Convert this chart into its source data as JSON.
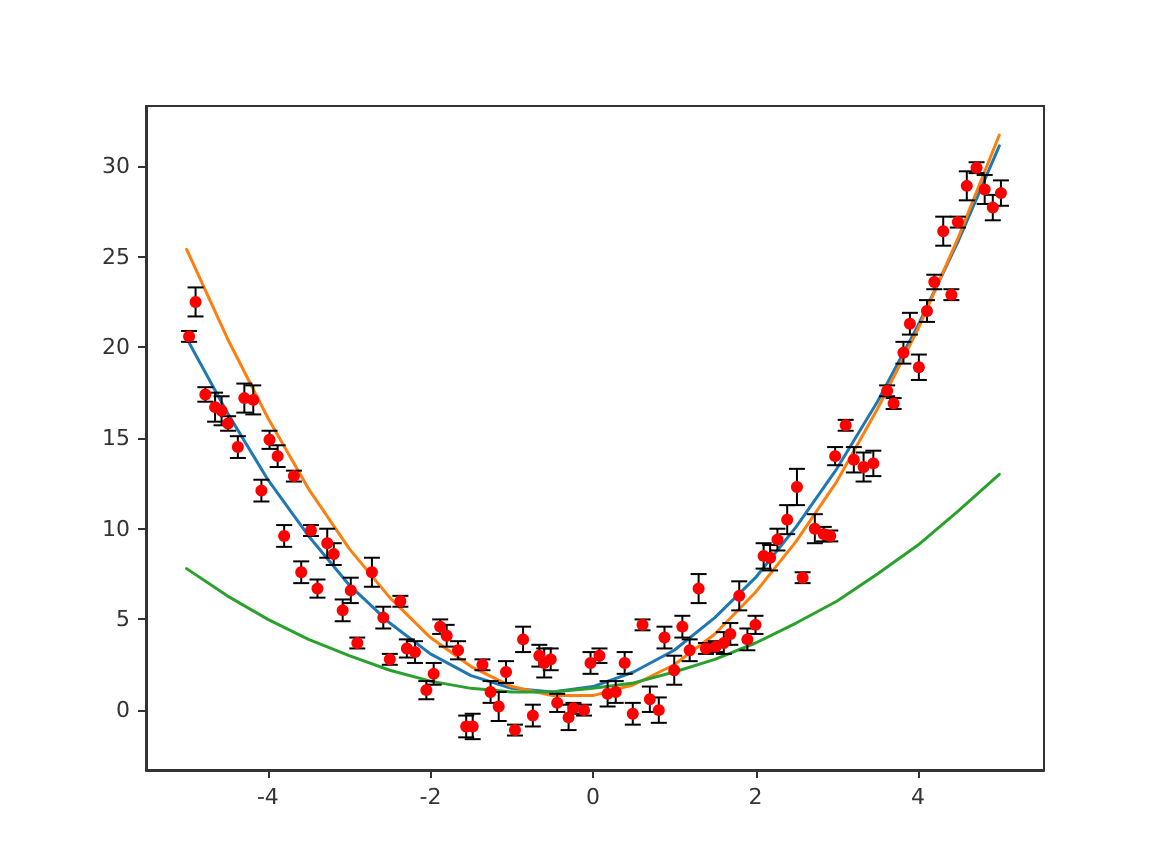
{
  "chart_data": {
    "type": "scatter",
    "xlim": [
      -5.5,
      5.55
    ],
    "ylim": [
      -3.3,
      33.3
    ],
    "xticks": [
      -4,
      -2,
      0,
      2,
      4
    ],
    "yticks": [
      0,
      5,
      10,
      15,
      20,
      25,
      30
    ],
    "grid": false,
    "series": [
      {
        "type": "line",
        "color": "#1f77b4",
        "marker": "none",
        "x": [
          -5,
          -4.5,
          -4,
          -3.5,
          -3,
          -2.5,
          -2,
          -1.5,
          -1,
          -0.5,
          0,
          0.5,
          1,
          1.5,
          2,
          2.5,
          3,
          3.5,
          4,
          4.5,
          5
        ],
        "values": [
          20.5,
          16.4,
          12.7,
          9.6,
          6.9,
          4.8,
          3.1,
          1.9,
          1.2,
          1.0,
          1.3,
          2.1,
          3.3,
          5.1,
          7.3,
          10.1,
          13.3,
          17.0,
          21.2,
          25.9,
          31.1
        ]
      },
      {
        "type": "line",
        "color": "#ff7f0e",
        "marker": "none",
        "x": [
          -5,
          -4.5,
          -4,
          -3.5,
          -3,
          -2.5,
          -2,
          -1.5,
          -1,
          -0.5,
          0,
          0.5,
          1,
          1.5,
          2,
          2.5,
          3,
          3.5,
          4,
          4.5,
          5
        ],
        "values": [
          25.4,
          20.5,
          16.1,
          12.2,
          8.9,
          6.2,
          4.0,
          2.4,
          1.3,
          0.8,
          0.8,
          1.4,
          2.5,
          4.2,
          6.5,
          9.3,
          12.6,
          16.6,
          21.0,
          26.1,
          31.7
        ]
      },
      {
        "type": "line",
        "color": "#2ca02c",
        "marker": "none",
        "x": [
          -5,
          -4.5,
          -4,
          -3.5,
          -3,
          -2.5,
          -2,
          -1.5,
          -1,
          -0.5,
          0,
          0.5,
          1,
          1.5,
          2,
          2.5,
          3,
          3.5,
          4,
          4.5,
          5
        ],
        "values": [
          7.8,
          6.3,
          5.0,
          3.9,
          3.0,
          2.2,
          1.6,
          1.2,
          1.0,
          1.0,
          1.2,
          1.5,
          2.1,
          2.8,
          3.7,
          4.8,
          6.0,
          7.5,
          9.1,
          11.0,
          13.0
        ]
      },
      {
        "type": "scatter",
        "color": "#ff0000",
        "marker": "circle",
        "x": [
          -4.97,
          -4.89,
          -4.77,
          -4.65,
          -4.57,
          -4.49,
          -4.37,
          -4.29,
          -4.18,
          -4.08,
          -3.98,
          -3.88,
          -3.8,
          -3.68,
          -3.59,
          -3.47,
          -3.39,
          -3.27,
          -3.19,
          -3.08,
          -2.98,
          -2.9,
          -2.72,
          -2.58,
          -2.5,
          -2.37,
          -2.29,
          -2.19,
          -2.05,
          -1.96,
          -1.88,
          -1.8,
          -1.66,
          -1.56,
          -1.48,
          -1.36,
          -1.26,
          -1.16,
          -1.07,
          -0.96,
          -0.86,
          -0.74,
          -0.66,
          -0.6,
          -0.52,
          -0.44,
          -0.3,
          -0.24,
          -0.11,
          -0.03,
          0.08,
          0.18,
          0.28,
          0.39,
          0.49,
          0.61,
          0.7,
          0.81,
          0.88,
          1.0,
          1.1,
          1.19,
          1.3,
          1.39,
          1.51,
          1.61,
          1.69,
          1.8,
          1.9,
          2.0,
          2.1,
          2.18,
          2.27,
          2.39,
          2.51,
          2.58,
          2.73,
          2.84,
          2.92,
          2.98,
          3.11,
          3.21,
          3.33,
          3.45,
          3.62,
          3.7,
          3.82,
          3.9,
          4.01,
          4.11,
          4.2,
          4.31,
          4.41,
          4.49,
          4.6,
          4.72,
          4.82,
          4.92,
          5.02
        ],
        "values": [
          20.6,
          22.5,
          17.4,
          16.7,
          16.5,
          15.8,
          14.5,
          17.2,
          17.1,
          12.1,
          14.9,
          14.0,
          9.6,
          12.9,
          7.6,
          9.9,
          6.7,
          9.2,
          8.6,
          5.5,
          6.6,
          3.7,
          7.6,
          5.1,
          2.8,
          6.0,
          3.4,
          3.2,
          1.1,
          2.0,
          4.6,
          4.1,
          3.3,
          -0.9,
          -0.9,
          2.5,
          1.0,
          0.2,
          2.1,
          -1.1,
          3.9,
          -0.3,
          3.0,
          2.6,
          2.8,
          0.4,
          -0.4,
          0.1,
          0.0,
          2.6,
          3.0,
          0.9,
          1.0,
          2.6,
          -0.2,
          4.7,
          0.6,
          0.0,
          4.0,
          2.2,
          4.6,
          3.3,
          6.7,
          3.4,
          3.5,
          3.7,
          4.2,
          6.3,
          3.9,
          4.7,
          8.5,
          8.4,
          9.4,
          10.5,
          12.3,
          7.3,
          10.0,
          9.7,
          9.6,
          14.0,
          15.7,
          13.8,
          13.4,
          13.6,
          17.6,
          16.9,
          19.7,
          21.3,
          18.9,
          22.0,
          23.6,
          26.4,
          22.9,
          26.9,
          28.9,
          29.9,
          28.7,
          27.7,
          28.5
        ],
        "errors": [
          0.3,
          0.8,
          0.4,
          0.8,
          0.8,
          0.4,
          0.6,
          0.8,
          0.8,
          0.6,
          0.5,
          0.6,
          0.6,
          0.3,
          0.6,
          0.3,
          0.5,
          0.8,
          0.6,
          0.6,
          0.7,
          0.3,
          0.8,
          0.6,
          0.3,
          0.3,
          0.5,
          0.6,
          0.5,
          0.6,
          0.4,
          0.6,
          0.5,
          0.6,
          0.7,
          0.3,
          0.6,
          0.8,
          0.6,
          0.3,
          0.7,
          0.6,
          0.6,
          0.8,
          0.6,
          0.5,
          0.7,
          0.3,
          0.3,
          0.6,
          0.4,
          0.7,
          0.6,
          0.6,
          0.6,
          0.3,
          0.7,
          0.7,
          0.6,
          0.8,
          0.6,
          0.6,
          0.8,
          0.3,
          0.3,
          0.6,
          0.6,
          0.8,
          0.6,
          0.5,
          0.7,
          0.7,
          0.6,
          0.8,
          1.0,
          0.3,
          0.8,
          0.4,
          0.3,
          0.5,
          0.3,
          0.7,
          0.8,
          0.7,
          0.3,
          0.3,
          0.6,
          0.6,
          0.7,
          0.6,
          0.4,
          0.8,
          0.3,
          0.3,
          0.8,
          0.3,
          0.8,
          0.7,
          0.7
        ]
      }
    ]
  }
}
